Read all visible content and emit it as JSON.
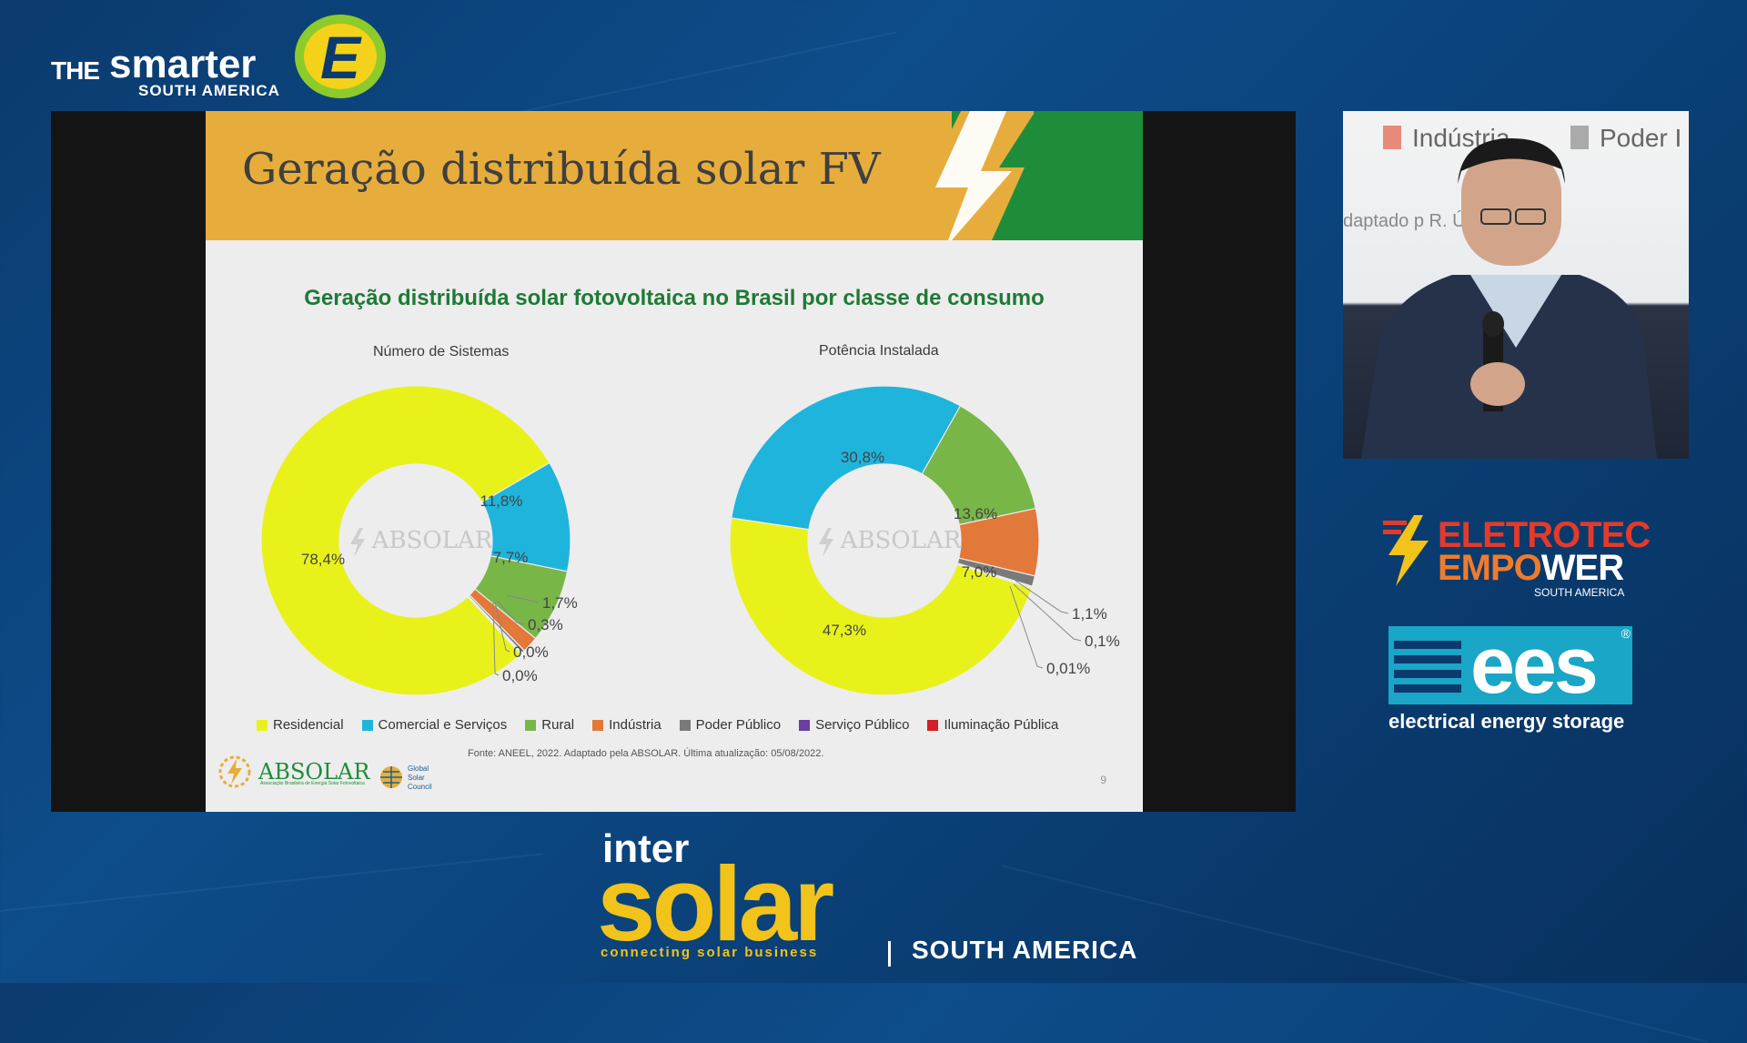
{
  "event_brand": {
    "the": "THE",
    "smarter": "smarter",
    "e": "E",
    "region": "SOUTH AMERICA"
  },
  "slide": {
    "title": "Geração distribuída solar FV",
    "source": "Fonte: ANEEL, 2022. Adaptado pela ABSOLAR. Última atualização: 05/08/2022.",
    "page_number": "9",
    "org_logo": "ABSOLAR",
    "org_tagline": "Associação Brasileira de Energia Solar Fotovoltaica",
    "gsc_line1": "Global",
    "gsc_line2": "Solar",
    "gsc_line3": "Council",
    "watermark": "ABSOLAR"
  },
  "chart_data": {
    "type": "pie",
    "title": "Geração distribuída solar fotovoltaica no Brasil por classe de consumo",
    "legend_position": "bottom",
    "categories": [
      "Residencial",
      "Comercial e Serviços",
      "Rural",
      "Indústria",
      "Poder Público",
      "Serviço Público",
      "Iluminação Pública"
    ],
    "colors": [
      "#e8f21a",
      "#1fb4dc",
      "#78b648",
      "#e2783a",
      "#7a7a7a",
      "#6b3fa0",
      "#d0202a"
    ],
    "series": [
      {
        "name": "Número de Sistemas",
        "values": [
          78.4,
          11.8,
          7.7,
          1.7,
          0.3,
          0.0,
          0.0
        ],
        "labels": [
          "78,4%",
          "11,8%",
          "7,7%",
          "1,7%",
          "0,3%",
          "0,0%",
          "0,0%"
        ]
      },
      {
        "name": "Potência Instalada",
        "values": [
          47.3,
          30.8,
          13.6,
          7.0,
          1.1,
          0.1,
          0.01
        ],
        "labels": [
          "47,3%",
          "30,8%",
          "13,6%",
          "7,0%",
          "1,1%",
          "0,1%",
          "0,01%"
        ]
      }
    ]
  },
  "speaker_bg": {
    "legend_a": "Indústria",
    "legend_b": "Poder I",
    "source_fragment": "daptado p          R. Última atual"
  },
  "sponsors": {
    "eletrotec_line1": "ELETROTEC",
    "eletrotec_line2a": "EM",
    "eletrotec_line2b": "PO",
    "eletrotec_line2c": "WER",
    "eletrotec_region": "SOUTH AMERICA",
    "ees_mark": "ees",
    "ees_reg": "®",
    "ees_caption": "electrical energy storage"
  },
  "intersolar": {
    "inter": "inter",
    "solar": "solar",
    "tagline": "connecting solar business",
    "region": "SOUTH AMERICA"
  }
}
